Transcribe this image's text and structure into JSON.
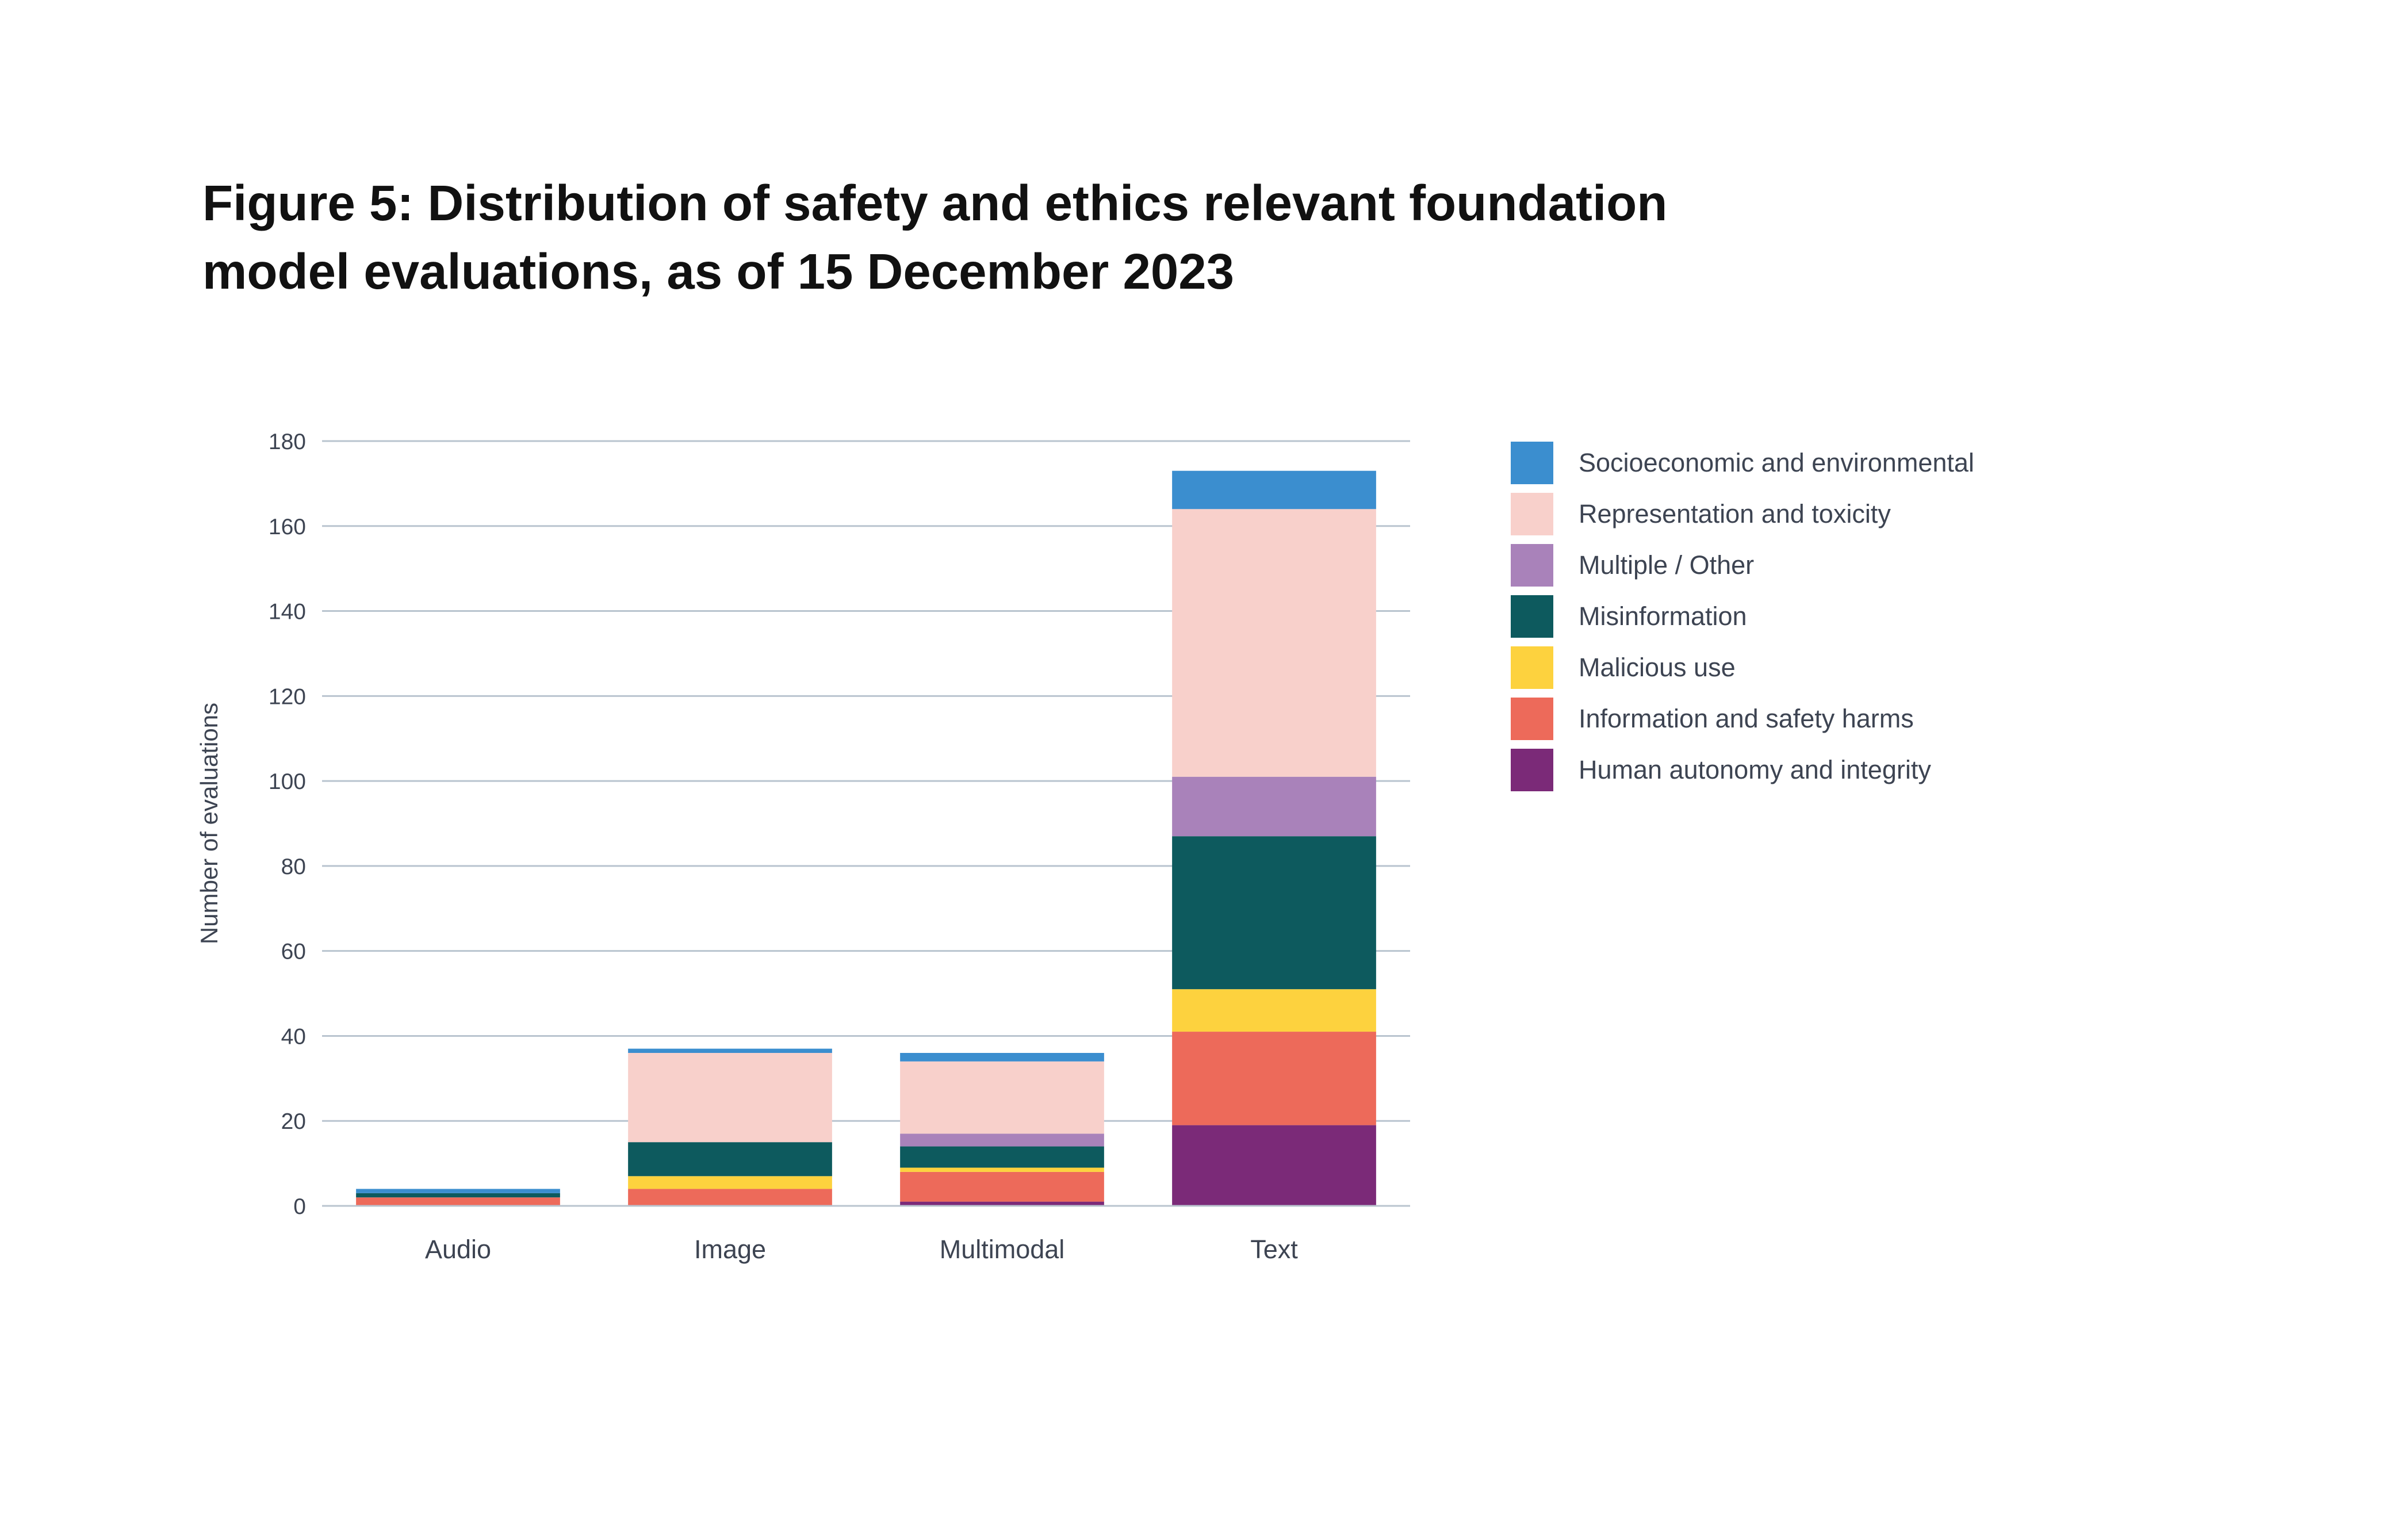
{
  "chart_data": {
    "type": "bar",
    "stacked": true,
    "title_lines": [
      "Figure 5: Distribution of safety and ethics relevant foundation",
      "model evaluations, as of 15 December 2023"
    ],
    "xlabel": "",
    "ylabel": "Number of evaluations",
    "ylim": [
      0,
      180
    ],
    "yticks": [
      0,
      20,
      40,
      60,
      80,
      100,
      120,
      140,
      160,
      180
    ],
    "grid": true,
    "legend_position": "right",
    "categories": [
      "Audio",
      "Image",
      "Multimodal",
      "Text"
    ],
    "series": [
      {
        "name": "Human autonomy and integrity",
        "color": "#7b2a78",
        "values": [
          0,
          0,
          1,
          19
        ]
      },
      {
        "name": "Information and safety harms",
        "color": "#ed6a5a",
        "values": [
          2,
          4,
          7,
          22
        ]
      },
      {
        "name": "Malicious use",
        "color": "#fdd23e",
        "values": [
          0,
          3,
          1,
          10
        ]
      },
      {
        "name": "Misinformation",
        "color": "#0d5a5e",
        "values": [
          1,
          8,
          5,
          36
        ]
      },
      {
        "name": "Multiple / Other",
        "color": "#a982ba",
        "values": [
          0,
          0,
          3,
          14
        ]
      },
      {
        "name": "Representation and toxicity",
        "color": "#f8d0cb",
        "values": [
          0,
          21,
          17,
          63
        ]
      },
      {
        "name": "Socioeconomic and environmental",
        "color": "#3b8ecf",
        "values": [
          1,
          1,
          2,
          9
        ]
      }
    ]
  }
}
